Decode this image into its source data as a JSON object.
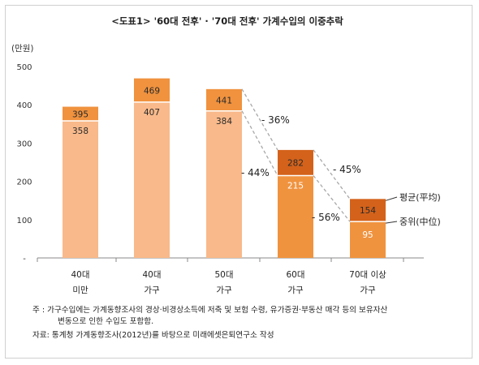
{
  "chart_data": {
    "type": "bar",
    "title": "<도표1> '60대 전후' · '70대 전후' 가계수입의 이중추락",
    "unit_label": "(만원)",
    "categories": [
      [
        "40대",
        "미만"
      ],
      [
        "40대",
        "가구"
      ],
      [
        "50대",
        "가구"
      ],
      [
        "60대",
        "가구"
      ],
      [
        "70대 이상",
        "가구"
      ]
    ],
    "ylim": [
      0,
      500
    ],
    "yticks": [
      "-",
      "100",
      "200",
      "300",
      "400",
      "500"
    ],
    "grid": false,
    "series": [
      {
        "name": "중위(中位)",
        "values": [
          358,
          407,
          384,
          215,
          95
        ]
      },
      {
        "name": "평균(平均)",
        "values": [
          395,
          469,
          441,
          282,
          154
        ]
      }
    ],
    "annotations": [
      {
        "text": "- 36%",
        "from": 2,
        "to": 3,
        "series": "평균(平均)"
      },
      {
        "text": "- 44%",
        "from": 2,
        "to": 3,
        "series": "중위(中位)"
      },
      {
        "text": "- 45%",
        "from": 3,
        "to": 4,
        "series": "평균(平均)"
      },
      {
        "text": "- 56%",
        "from": 3,
        "to": 4,
        "series": "중위(中位)"
      }
    ],
    "legend_placement": "right-of-last-bar"
  },
  "notes": {
    "line1": "주  :  가구수입에는 가계동향조사의 경상·비경상소득에 저축 및 보험 수령, 유가증권·부동산 매각 등의 보유자산",
    "line2": "변동으로 인한 수입도 포함함.",
    "line3": "자료: 통계청 가계동향조사(2012년)를 바탕으로 미래에셋은퇴연구소 작성"
  },
  "colors": {
    "median_light": "#F9B98A",
    "median_dark": "#F0933F",
    "mean_light": "#F0923E",
    "mean_dark": "#D4621A",
    "axis": "#888888",
    "dash": "#A8A8A8"
  }
}
